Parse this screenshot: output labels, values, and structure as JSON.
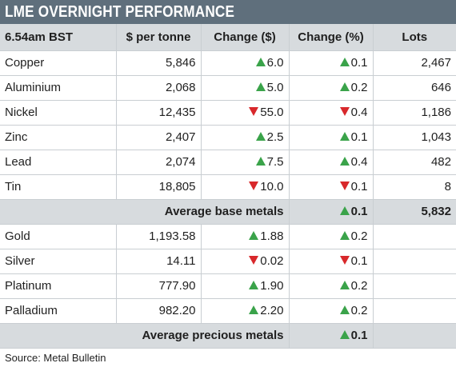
{
  "title": "LME OVERNIGHT PERFORMANCE",
  "headers": [
    "6.54am BST",
    "$ per tonne",
    "Change ($)",
    "Change (%)",
    "Lots"
  ],
  "colors": {
    "header_bar": "#5f6f7c",
    "band": "#d7dbde",
    "up": "#3aa34a",
    "down": "#d8282b"
  },
  "base_metals": [
    {
      "name": "Copper",
      "price": "5,846",
      "chg_dir": "up",
      "chg": "6.0",
      "pct_dir": "up",
      "pct": "0.1",
      "lots": "2,467"
    },
    {
      "name": "Aluminium",
      "price": "2,068",
      "chg_dir": "up",
      "chg": "5.0",
      "pct_dir": "up",
      "pct": "0.2",
      "lots": "646"
    },
    {
      "name": "Nickel",
      "price": "12,435",
      "chg_dir": "down",
      "chg": "55.0",
      "pct_dir": "down",
      "pct": "0.4",
      "lots": "1,186"
    },
    {
      "name": "Zinc",
      "price": "2,407",
      "chg_dir": "up",
      "chg": "2.5",
      "pct_dir": "up",
      "pct": "0.1",
      "lots": "1,043"
    },
    {
      "name": "Lead",
      "price": "2,074",
      "chg_dir": "up",
      "chg": "7.5",
      "pct_dir": "up",
      "pct": "0.4",
      "lots": "482"
    },
    {
      "name": "Tin",
      "price": "18,805",
      "chg_dir": "down",
      "chg": "10.0",
      "pct_dir": "down",
      "pct": "0.1",
      "lots": "8"
    }
  ],
  "base_avg": {
    "label": "Average base metals",
    "pct_dir": "up",
    "pct": "0.1",
    "lots": "5,832"
  },
  "precious_metals": [
    {
      "name": "Gold",
      "price": "1,193.58",
      "chg_dir": "up",
      "chg": "1.88",
      "pct_dir": "up",
      "pct": "0.2",
      "lots": ""
    },
    {
      "name": "Silver",
      "price": "14.11",
      "chg_dir": "down",
      "chg": "0.02",
      "pct_dir": "down",
      "pct": "0.1",
      "lots": ""
    },
    {
      "name": "Platinum",
      "price": "777.90",
      "chg_dir": "up",
      "chg": "1.90",
      "pct_dir": "up",
      "pct": "0.2",
      "lots": ""
    },
    {
      "name": "Palladium",
      "price": "982.20",
      "chg_dir": "up",
      "chg": "2.20",
      "pct_dir": "up",
      "pct": "0.2",
      "lots": ""
    }
  ],
  "precious_avg": {
    "label": "Average precious metals",
    "pct_dir": "up",
    "pct": "0.1",
    "lots": ""
  },
  "source": "Source: Metal Bulletin"
}
